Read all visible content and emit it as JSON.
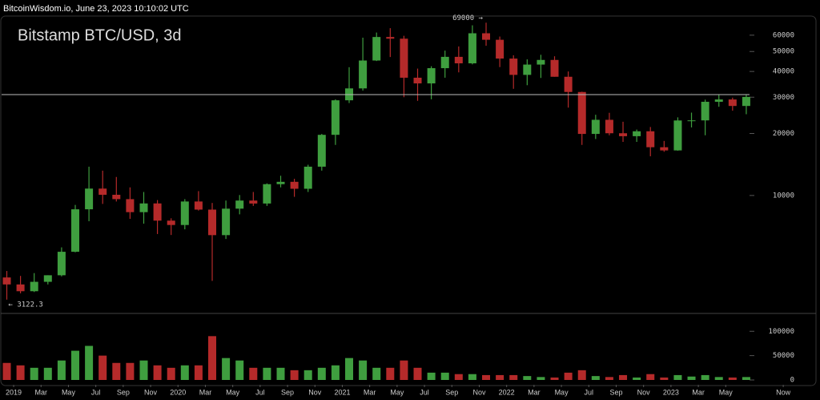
{
  "header": "BitcoinWisdom.io, June 23, 2023 10:10:02 UTC",
  "chart_data": {
    "type": "candlestick",
    "title": "Bitstamp BTC/USD, 3d",
    "up_color": "#3f9e3f",
    "down_color": "#b52a2a",
    "log_y": true,
    "x": [
      -0.5,
      0.5,
      1.5,
      2.5,
      3.5,
      4.5,
      5.5,
      6.5,
      7.5,
      8.5,
      9.5,
      10.5,
      11.5,
      12.5,
      13.5,
      14.5,
      15.5,
      16.5,
      17.5,
      18.5,
      19.5,
      20.5,
      21.5,
      22.5,
      23.5,
      24.5,
      25.5,
      26.5,
      27.5,
      28.5,
      29.5,
      30.5,
      31.5,
      32.5,
      33.5,
      34.5,
      35.5,
      36.5,
      37.5,
      38.5,
      39.5,
      40.5,
      41.5,
      42.5,
      43.5,
      44.5,
      45.5,
      46.5,
      47.5,
      48.5,
      49.5,
      50.5,
      51.5,
      52.5,
      53.5
    ],
    "open": [
      4000,
      3700,
      3430,
      3810,
      4100,
      5330,
      8570,
      10800,
      10080,
      9600,
      8300,
      9150,
      7550,
      7190,
      9350,
      8540,
      6420,
      8630,
      9450,
      9140,
      11350,
      11650,
      10780,
      13800,
      19700,
      28980,
      33100,
      45200,
      58800,
      57700,
      37300,
      35000,
      41500,
      47100,
      43800,
      61300,
      57000,
      46200,
      38500,
      43200,
      45500,
      37700,
      31800,
      19900,
      23300,
      20050,
      19400,
      20500,
      17150,
      16550,
      23130,
      23150,
      28500,
      29250,
      27200
    ],
    "high": [
      4300,
      4070,
      4200,
      4100,
      5600,
      9000,
      13800,
      13200,
      12300,
      10950,
      10400,
      9500,
      7750,
      9600,
      10500,
      9200,
      9450,
      10050,
      10400,
      11450,
      12470,
      12050,
      14100,
      19900,
      29300,
      41950,
      58350,
      61800,
      64900,
      59600,
      41300,
      42400,
      50500,
      52900,
      67000,
      69000,
      59100,
      47900,
      45800,
      48200,
      47400,
      40000,
      31900,
      24650,
      25200,
      22800,
      20900,
      21500,
      18400,
      23950,
      25250,
      29200,
      30950,
      29850,
      30800
    ],
    "low": [
      3122.3,
      3350,
      3400,
      3700,
      4050,
      5300,
      7500,
      9100,
      9350,
      7700,
      7300,
      6500,
      6430,
      6850,
      8450,
      3850,
      6150,
      8100,
      8900,
      8900,
      10950,
      9850,
      10400,
      13200,
      17600,
      28100,
      32300,
      44950,
      47000,
      30000,
      28800,
      29300,
      37300,
      39600,
      43300,
      53300,
      42000,
      32950,
      34300,
      37200,
      37700,
      26700,
      17600,
      18800,
      19600,
      18200,
      18200,
      15500,
      16300,
      16500,
      21400,
      19600,
      26950,
      25800,
      24800
    ],
    "close": [
      3700,
      3430,
      3810,
      4100,
      5330,
      8570,
      10800,
      10080,
      9600,
      8300,
      9150,
      7550,
      7190,
      9350,
      8540,
      6420,
      8630,
      9450,
      9140,
      11350,
      11650,
      10780,
      13800,
      19700,
      28980,
      33100,
      45200,
      58800,
      57700,
      37300,
      35000,
      41500,
      47100,
      43800,
      61300,
      57000,
      46200,
      38500,
      43200,
      45500,
      37700,
      31800,
      19900,
      23300,
      20050,
      19400,
      20500,
      17150,
      16550,
      23130,
      23150,
      28500,
      29250,
      27200,
      30100
    ],
    "volume": [
      35000,
      30000,
      25000,
      25000,
      40000,
      60000,
      70000,
      50000,
      35000,
      35000,
      40000,
      30000,
      25000,
      30000,
      30000,
      90000,
      45000,
      40000,
      25000,
      25000,
      25000,
      20000,
      20000,
      25000,
      30000,
      45000,
      40000,
      25000,
      25000,
      40000,
      25000,
      15000,
      15000,
      12000,
      12000,
      10000,
      10000,
      10000,
      8000,
      6000,
      5000,
      15000,
      20000,
      8000,
      6000,
      10000,
      5000,
      12000,
      5000,
      10000,
      7000,
      10000,
      6000,
      5000,
      6000
    ],
    "xlim": [
      -0.88,
      58.65
    ],
    "xticks": [
      {
        "value": 0,
        "label": "2019"
      },
      {
        "value": 2,
        "label": "Mar"
      },
      {
        "value": 4,
        "label": "May"
      },
      {
        "value": 6,
        "label": "Jul"
      },
      {
        "value": 8,
        "label": "Sep"
      },
      {
        "value": 10,
        "label": "Nov"
      },
      {
        "value": 12,
        "label": "2020"
      },
      {
        "value": 14,
        "label": "Mar"
      },
      {
        "value": 16,
        "label": "May"
      },
      {
        "value": 18,
        "label": "Jul"
      },
      {
        "value": 20,
        "label": "Sep"
      },
      {
        "value": 22,
        "label": "Nov"
      },
      {
        "value": 24,
        "label": "2021"
      },
      {
        "value": 26,
        "label": "Mar"
      },
      {
        "value": 28,
        "label": "May"
      },
      {
        "value": 30,
        "label": "Jul"
      },
      {
        "value": 32,
        "label": "Sep"
      },
      {
        "value": 34,
        "label": "Nov"
      },
      {
        "value": 36,
        "label": "2022"
      },
      {
        "value": 38,
        "label": "Mar"
      },
      {
        "value": 40,
        "label": "May"
      },
      {
        "value": 42,
        "label": "Jul"
      },
      {
        "value": 44,
        "label": "Sep"
      },
      {
        "value": 46,
        "label": "Nov"
      },
      {
        "value": 48,
        "label": "2023"
      },
      {
        "value": 50,
        "label": "Mar"
      },
      {
        "value": 52,
        "label": "May"
      },
      {
        "value": 56.2,
        "label": "Now"
      }
    ],
    "ylim": [
      2700,
      73000
    ],
    "yticks": [
      10000,
      20000,
      30000,
      40000,
      50000,
      60000
    ],
    "volume_ylim": [
      0,
      135000
    ],
    "volume_yticks": [
      0,
      50000,
      100000
    ],
    "reference_line": 30900,
    "annotations": [
      {
        "text": "69000 →",
        "x": 34.5,
        "y": 69000
      },
      {
        "text": "← 3122.3",
        "x": -0.5,
        "y": 3122.3
      }
    ]
  }
}
